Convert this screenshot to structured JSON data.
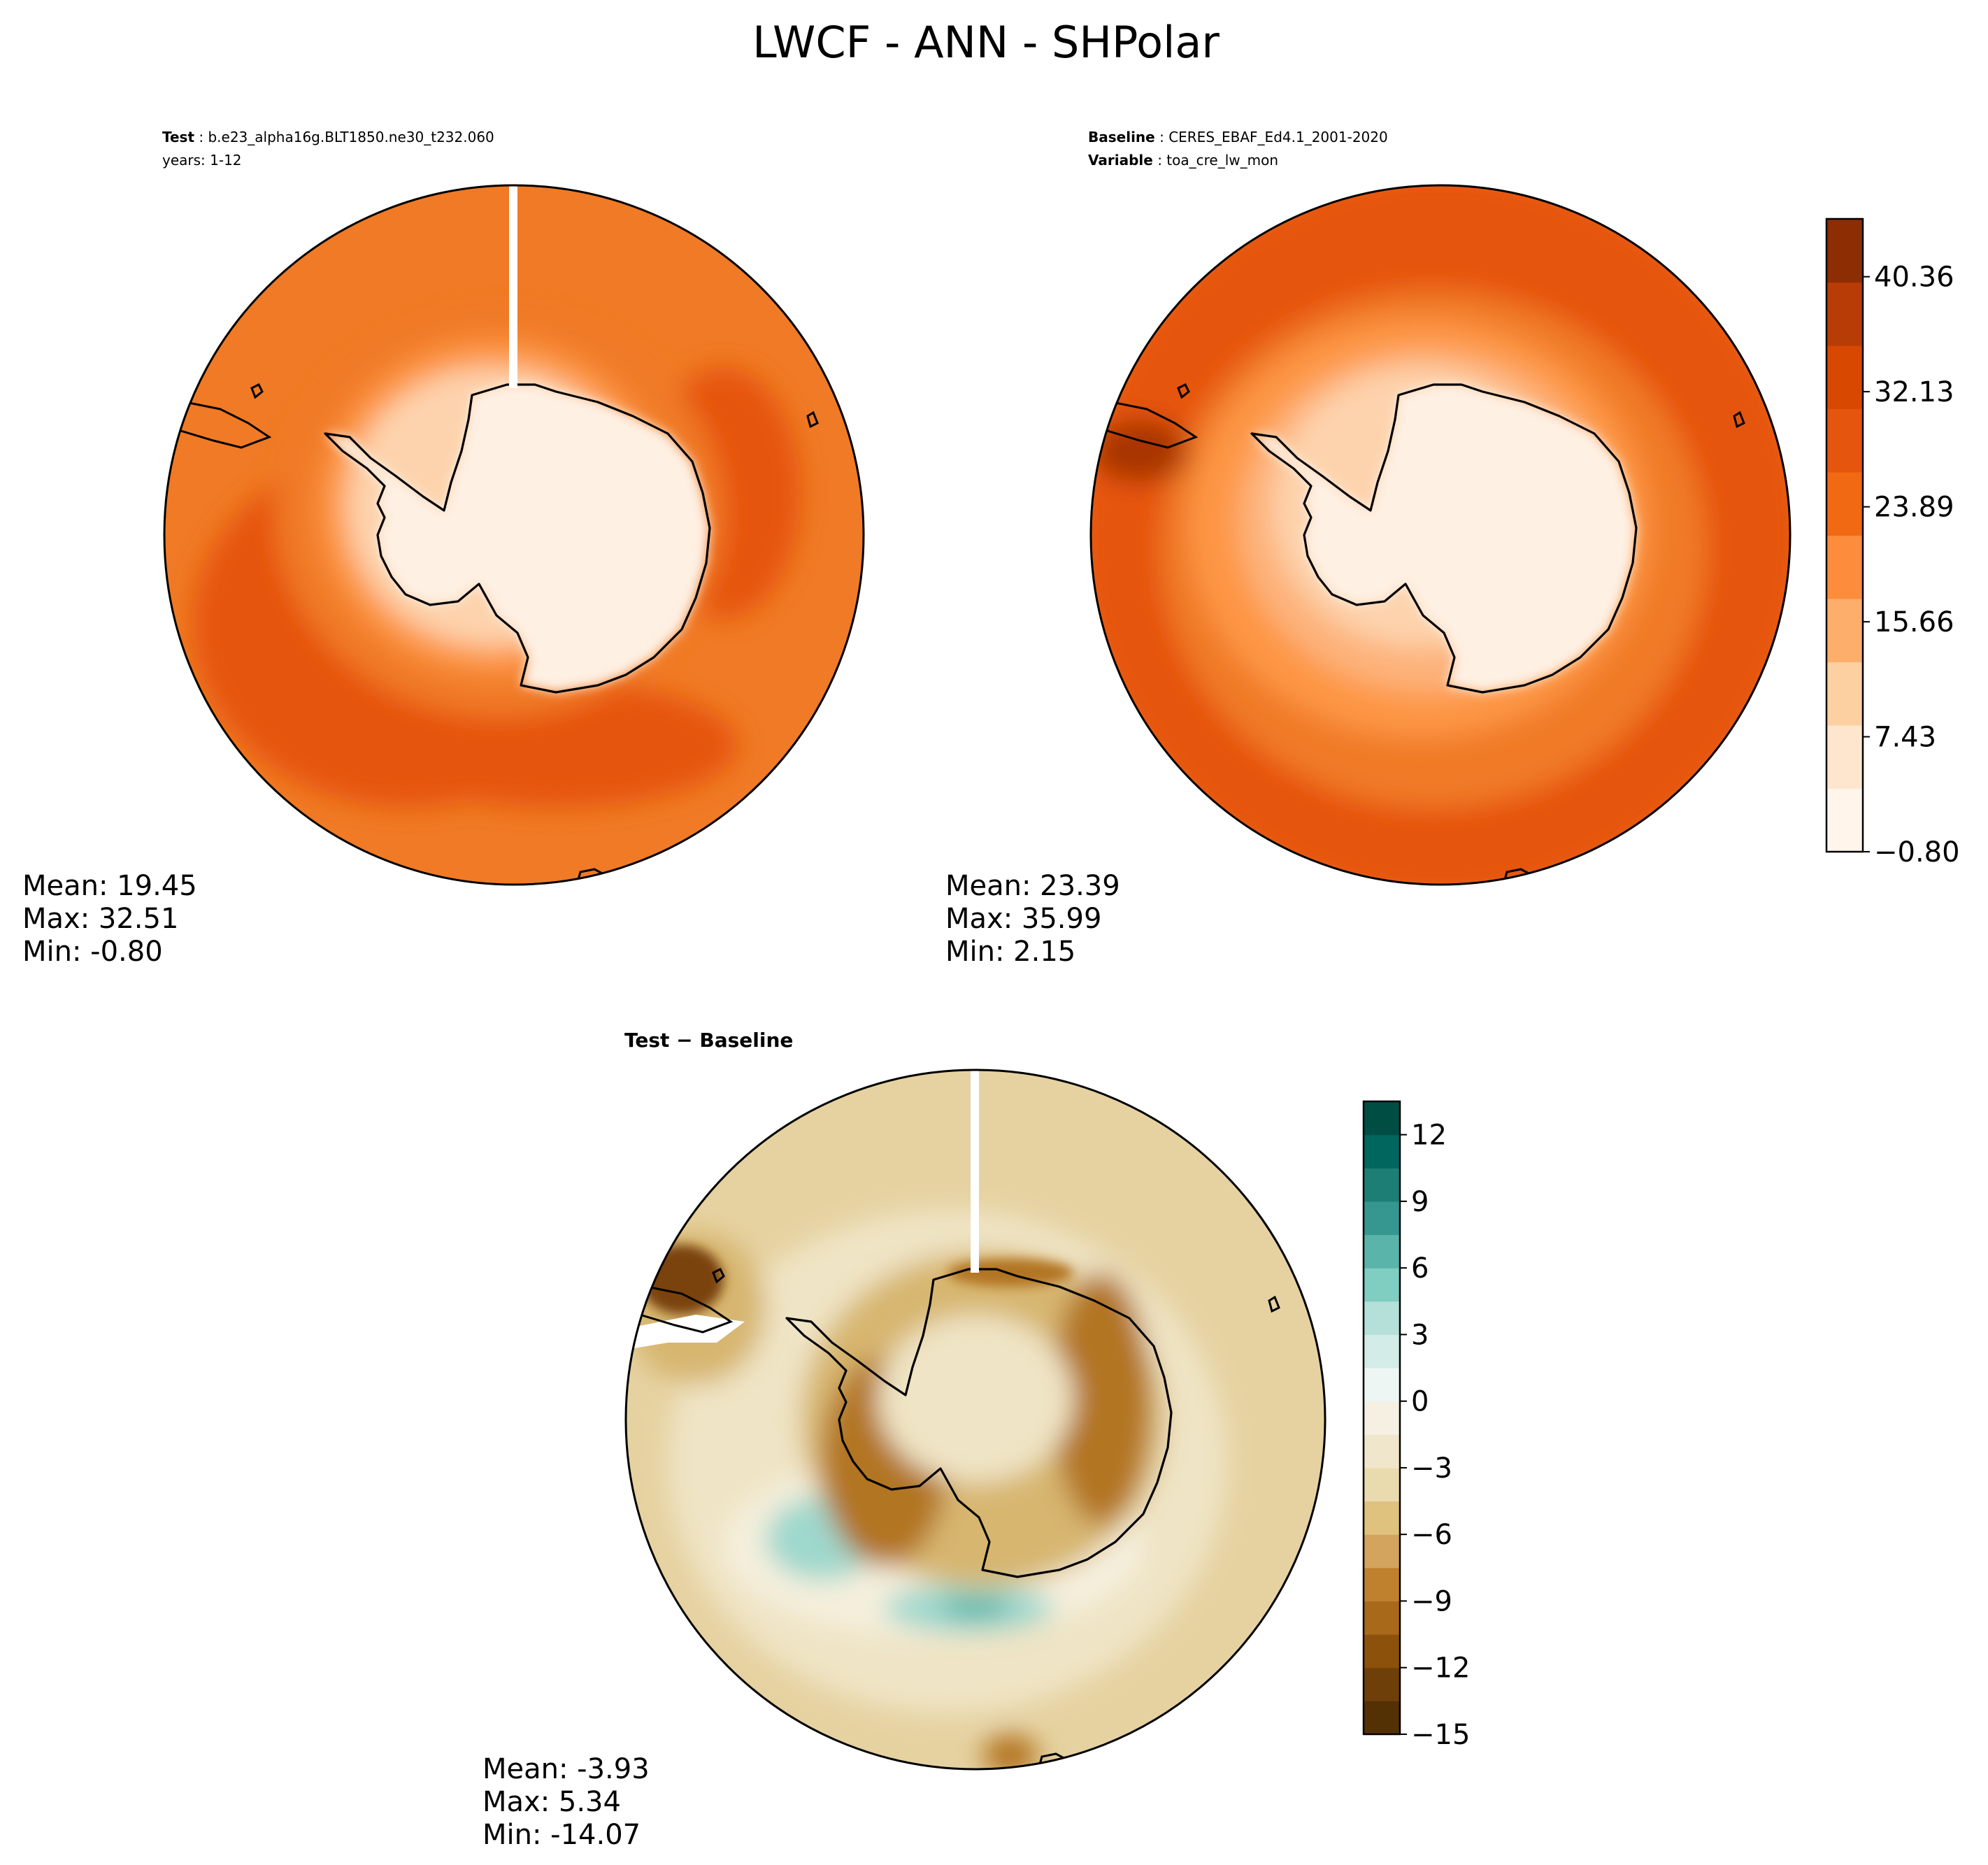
{
  "figure": {
    "title": "LWCF - ANN - SHPolar"
  },
  "panels": [
    {
      "id": "test",
      "header": [
        {
          "key": "Test",
          "value": "b.e23_alpha16g.BLT1850.ne30_t232.060"
        },
        {
          "key": "",
          "value": "years: 1-12"
        }
      ],
      "stats": {
        "mean": "Mean: 19.45",
        "max": "Max: 32.51",
        "min": "Min: -0.80"
      }
    },
    {
      "id": "baseline",
      "header": [
        {
          "key": "Baseline",
          "value": "CERES_EBAF_Ed4.1_2001-2020"
        },
        {
          "key": "Variable",
          "value": "toa_cre_lw_mon"
        }
      ],
      "stats": {
        "mean": "Mean: 23.39",
        "max": "Max: 35.99",
        "min": "Min:  2.15"
      }
    },
    {
      "id": "diff",
      "header": [
        {
          "key": "Test − Baseline",
          "value": ""
        }
      ],
      "stats": {
        "mean": "Mean: -3.93",
        "max": "Max:  5.34",
        "min": "Min: -14.07"
      }
    }
  ],
  "colorbars": [
    {
      "id": "main",
      "tick_labels": [
        "40.36",
        "32.13",
        "23.89",
        "15.66",
        "7.43",
        "−0.80"
      ],
      "tick_values": [
        40.36,
        32.13,
        23.89,
        15.66,
        7.43,
        -0.8
      ],
      "range": [
        -0.8,
        44.5
      ],
      "colors": [
        "#fff5eb",
        "#fee6ce",
        "#fdd0a2",
        "#fdae6b",
        "#fd8d3c",
        "#f16913",
        "#e6550d",
        "#d94801",
        "#b83c05",
        "#8c2d04"
      ]
    },
    {
      "id": "diff",
      "tick_labels": [
        "12",
        "9",
        "6",
        "3",
        "0",
        "−3",
        "−6",
        "−9",
        "−12",
        "−15"
      ],
      "tick_values": [
        12,
        9,
        6,
        3,
        0,
        -3,
        -6,
        -9,
        -12,
        -15
      ],
      "range": [
        -15,
        13.5
      ],
      "colors": [
        "#543005",
        "#6f3f0a",
        "#8c510a",
        "#a8691b",
        "#bf812d",
        "#d2a45e",
        "#dfc27d",
        "#eadbae",
        "#f0e6cb",
        "#f5f0e2",
        "#eef6f4",
        "#d4ece8",
        "#b5e0d9",
        "#80cdc1",
        "#5ab4aa",
        "#35978f",
        "#1d7e75",
        "#01665e",
        "#004d44"
      ]
    }
  ],
  "map_colors": {
    "coast": "#000000",
    "main": {
      "ocean_outer": "#f07a25",
      "ocean_band": "#e6550d",
      "mid": "#fd9645",
      "light": "#fdb27a",
      "pale": "#fdd3ad",
      "ice": "#fef0e3",
      "dark": "#a83404"
    },
    "diff": {
      "base": "#e6d2a1",
      "light": "#efe4c5",
      "pale": "#f5efdd",
      "tan": "#d7b66f",
      "brown": "#b27524",
      "dark": "#7a4308",
      "teal": "#9fd8cd",
      "tealdark": "#58b2a6"
    }
  }
}
